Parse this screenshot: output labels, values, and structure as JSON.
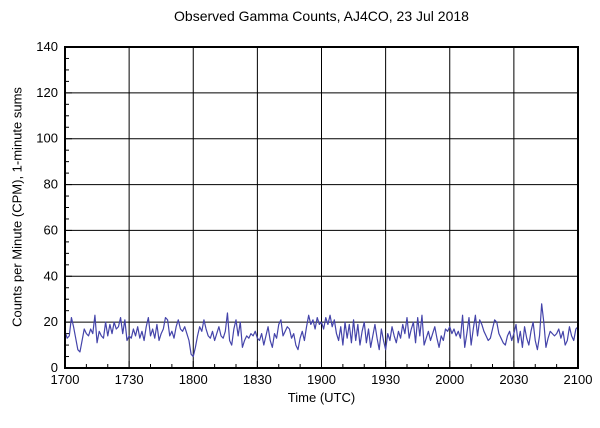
{
  "title": "Observed Gamma Counts, AJ4CO, 23 Jul 2018",
  "chart_data": {
    "type": "line",
    "title": "Observed Gamma Counts, AJ4CO, 23 Jul 2018",
    "xlabel": "Time (UTC)",
    "ylabel": "Counts per Minute (CPM), 1-minute sums",
    "x_tick_labels": [
      "1700",
      "1730",
      "1800",
      "1830",
      "1900",
      "1930",
      "2000",
      "2030",
      "2100"
    ],
    "x_major_interval_minutes": 30,
    "x_minor_interval_minutes": 10,
    "xlim_minutes": [
      0,
      240
    ],
    "y_ticks": [
      0,
      20,
      40,
      60,
      80,
      100,
      120,
      140
    ],
    "y_minor_interval": 5,
    "ylim": [
      0,
      140
    ],
    "grid": true,
    "legend_position": "none",
    "line_color": "#4444aa",
    "grid_color": "#000000",
    "frame_color": "#000000",
    "series": [
      {
        "name": "gamma_counts_1min",
        "start_time_utc": "1700",
        "end_time_utc": "2100",
        "interval_minutes": 1,
        "values": [
          16,
          13,
          14,
          22,
          18,
          13,
          8,
          7,
          12,
          17,
          15,
          14,
          17,
          15,
          23,
          11,
          16,
          14,
          13,
          20,
          14,
          19,
          15,
          20,
          17,
          18,
          22,
          15,
          21,
          12,
          14,
          13,
          17,
          14,
          18,
          13,
          16,
          12,
          18,
          22,
          14,
          17,
          13,
          19,
          12,
          15,
          17,
          22,
          21,
          14,
          16,
          13,
          18,
          21,
          17,
          16,
          18,
          15,
          12,
          6,
          5,
          9,
          14,
          18,
          16,
          21,
          17,
          14,
          13,
          16,
          12,
          15,
          18,
          14,
          13,
          16,
          24,
          12,
          10,
          17,
          21,
          14,
          20,
          9,
          12,
          14,
          13,
          15,
          14,
          16,
          13,
          12,
          15,
          10,
          14,
          18,
          12,
          9,
          15,
          13,
          19,
          21,
          14,
          16,
          18,
          17,
          13,
          15,
          10,
          8,
          13,
          16,
          12,
          18,
          23,
          19,
          21,
          17,
          22,
          19,
          20,
          17,
          22,
          19,
          23,
          18,
          21,
          15,
          12,
          18,
          10,
          20,
          13,
          19,
          11,
          21,
          12,
          19,
          10,
          16,
          20,
          11,
          17,
          9,
          14,
          19,
          13,
          8,
          17,
          12,
          8,
          15,
          12,
          18,
          14,
          11,
          16,
          13,
          19,
          15,
          22,
          13,
          17,
          20,
          11,
          22,
          14,
          23,
          10,
          13,
          16,
          12,
          15,
          18,
          13,
          9,
          14,
          12,
          17,
          16,
          18,
          15,
          17,
          14,
          16,
          13,
          23,
          9,
          15,
          22,
          10,
          17,
          23,
          14,
          21,
          19,
          16,
          14,
          12,
          13,
          17,
          21,
          20,
          15,
          13,
          11,
          10,
          14,
          16,
          12,
          15,
          19,
          11,
          16,
          9,
          18,
          13,
          10,
          16,
          20,
          12,
          8,
          14,
          28,
          20,
          9,
          13,
          16,
          15,
          14,
          15,
          17,
          13,
          16,
          10,
          12,
          18,
          14,
          12,
          17,
          18
        ]
      }
    ]
  },
  "layout_note": "single line chart, black major grid, inward minor ticks"
}
